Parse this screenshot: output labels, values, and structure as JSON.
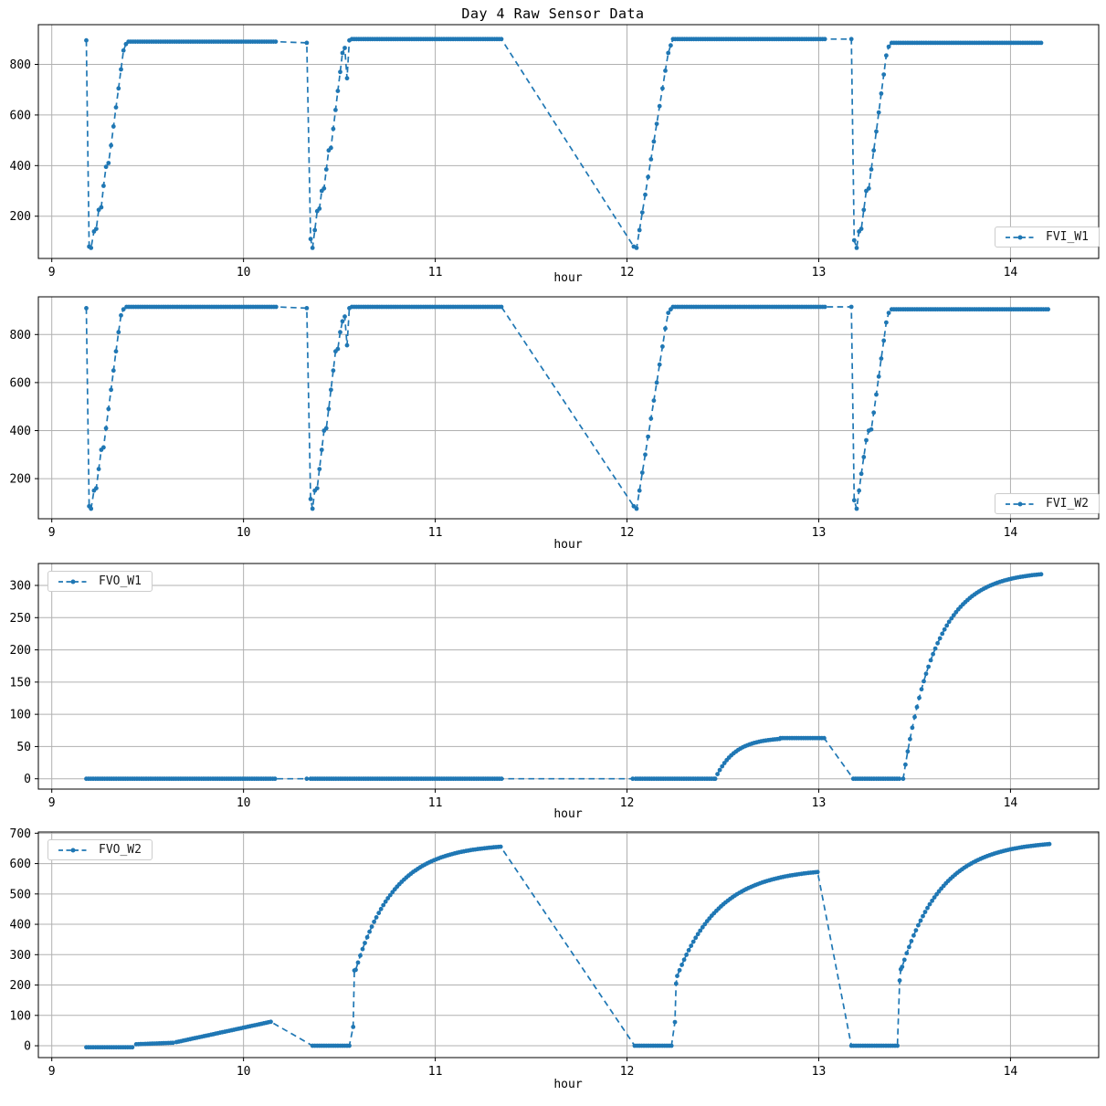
{
  "figure": {
    "title": "Day 4 Raw Sensor Data"
  },
  "colors": {
    "series": "#1f77b4",
    "grid": "#b0b0b0",
    "spine": "#000000",
    "legend_border": "#cccccc",
    "background": "#ffffff"
  },
  "chart_data": [
    {
      "type": "line",
      "xlabel": "hour",
      "legend_loc": "lower right",
      "xlim": [
        8.93,
        14.46
      ],
      "ylim": [
        33,
        957
      ],
      "xticks": [
        9,
        10,
        11,
        12,
        13,
        14
      ],
      "yticks": [
        200,
        400,
        600,
        800
      ],
      "grid": true,
      "series": [
        {
          "name": "FVI_W1",
          "color": "#1f77b4",
          "linestyle": "dashed",
          "marker": "o",
          "segments": [
            {
              "pts": [
                [
                  9.18,
                  895
                ]
              ]
            },
            {
              "pts": [
                [
                  9.195,
                  80
                ],
                [
                  9.205,
                  75
                ]
              ]
            },
            {
              "pts": [
                [
                  9.22,
                  140
                ],
                [
                  9.232,
                  150
                ],
                [
                  9.245,
                  225
                ],
                [
                  9.258,
                  235
                ],
                [
                  9.27,
                  320
                ],
                [
                  9.283,
                  395
                ],
                [
                  9.296,
                  410
                ],
                [
                  9.309,
                  480
                ],
                [
                  9.322,
                  555
                ],
                [
                  9.335,
                  630
                ],
                [
                  9.348,
                  705
                ],
                [
                  9.361,
                  780
                ],
                [
                  9.374,
                  855
                ],
                [
                  9.387,
                  880
                ]
              ]
            },
            {
              "flat": [
                9.4,
                10.17,
                890
              ]
            },
            {
              "pts": [
                [
                  10.33,
                  885
                ]
              ]
            },
            {
              "pts": [
                [
                  10.35,
                  110
                ],
                [
                  10.36,
                  75
                ]
              ]
            },
            {
              "pts": [
                [
                  10.372,
                  145
                ],
                [
                  10.384,
                  220
                ],
                [
                  10.396,
                  230
                ],
                [
                  10.408,
                  300
                ],
                [
                  10.42,
                  310
                ],
                [
                  10.432,
                  385
                ],
                [
                  10.444,
                  460
                ],
                [
                  10.456,
                  470
                ],
                [
                  10.468,
                  545
                ],
                [
                  10.48,
                  620
                ],
                [
                  10.492,
                  695
                ],
                [
                  10.504,
                  770
                ],
                [
                  10.516,
                  845
                ],
                [
                  10.528,
                  865
                ],
                [
                  10.54,
                  745
                ],
                [
                  10.552,
                  895
                ]
              ]
            },
            {
              "flat": [
                10.565,
                11.35,
                900
              ]
            },
            {
              "pts": [
                [
                  12.035,
                  80
                ],
                [
                  12.05,
                  75
                ]
              ]
            },
            {
              "pts": [
                [
                  12.065,
                  145
                ],
                [
                  12.08,
                  215
                ],
                [
                  12.095,
                  285
                ],
                [
                  12.11,
                  355
                ],
                [
                  12.125,
                  425
                ],
                [
                  12.14,
                  495
                ],
                [
                  12.155,
                  565
                ],
                [
                  12.17,
                  635
                ],
                [
                  12.185,
                  705
                ],
                [
                  12.2,
                  775
                ],
                [
                  12.215,
                  845
                ],
                [
                  12.228,
                  875
                ]
              ]
            },
            {
              "flat": [
                12.24,
                13.04,
                900
              ]
            },
            {
              "pts": [
                [
                  13.17,
                  900
                ]
              ]
            },
            {
              "pts": [
                [
                  13.185,
                  105
                ],
                [
                  13.198,
                  75
                ]
              ]
            },
            {
              "pts": [
                [
                  13.21,
                  140
                ],
                [
                  13.222,
                  150
                ],
                [
                  13.235,
                  225
                ],
                [
                  13.248,
                  300
                ],
                [
                  13.261,
                  310
                ],
                [
                  13.274,
                  385
                ],
                [
                  13.287,
                  460
                ],
                [
                  13.3,
                  535
                ],
                [
                  13.313,
                  610
                ],
                [
                  13.326,
                  685
                ],
                [
                  13.339,
                  760
                ],
                [
                  13.352,
                  835
                ],
                [
                  13.365,
                  870
                ]
              ]
            },
            {
              "flat": [
                13.38,
                14.17,
                885
              ]
            }
          ]
        }
      ]
    },
    {
      "type": "line",
      "xlabel": "hour",
      "legend_loc": "lower right",
      "xlim": [
        8.93,
        14.46
      ],
      "ylim": [
        33,
        957
      ],
      "xticks": [
        9,
        10,
        11,
        12,
        13,
        14
      ],
      "yticks": [
        200,
        400,
        600,
        800
      ],
      "grid": true,
      "series": [
        {
          "name": "FVI_W2",
          "color": "#1f77b4",
          "linestyle": "dashed",
          "marker": "o",
          "segments": [
            {
              "pts": [
                [
                  9.18,
                  910
                ]
              ]
            },
            {
              "pts": [
                [
                  9.195,
                  85
                ],
                [
                  9.205,
                  75
                ]
              ]
            },
            {
              "pts": [
                [
                  9.22,
                  150
                ],
                [
                  9.232,
                  160
                ],
                [
                  9.245,
                  240
                ],
                [
                  9.258,
                  320
                ],
                [
                  9.27,
                  330
                ],
                [
                  9.283,
                  410
                ],
                [
                  9.296,
                  490
                ],
                [
                  9.309,
                  570
                ],
                [
                  9.322,
                  650
                ],
                [
                  9.335,
                  730
                ],
                [
                  9.348,
                  810
                ],
                [
                  9.361,
                  880
                ],
                [
                  9.374,
                  905
                ]
              ]
            },
            {
              "flat": [
                9.39,
                10.17,
                915
              ]
            },
            {
              "pts": [
                [
                  10.33,
                  910
                ]
              ]
            },
            {
              "pts": [
                [
                  10.35,
                  115
                ],
                [
                  10.36,
                  75
                ]
              ]
            },
            {
              "pts": [
                [
                  10.372,
                  150
                ],
                [
                  10.384,
                  160
                ],
                [
                  10.396,
                  240
                ],
                [
                  10.408,
                  320
                ],
                [
                  10.42,
                  400
                ],
                [
                  10.432,
                  410
                ],
                [
                  10.444,
                  490
                ],
                [
                  10.456,
                  570
                ],
                [
                  10.468,
                  650
                ],
                [
                  10.48,
                  730
                ],
                [
                  10.492,
                  740
                ],
                [
                  10.504,
                  810
                ],
                [
                  10.516,
                  855
                ],
                [
                  10.528,
                  875
                ],
                [
                  10.54,
                  755
                ],
                [
                  10.552,
                  910
                ]
              ]
            },
            {
              "flat": [
                10.565,
                11.35,
                915
              ]
            },
            {
              "pts": [
                [
                  12.035,
                  85
                ],
                [
                  12.05,
                  75
                ]
              ]
            },
            {
              "pts": [
                [
                  12.065,
                  150
                ],
                [
                  12.08,
                  225
                ],
                [
                  12.095,
                  300
                ],
                [
                  12.11,
                  375
                ],
                [
                  12.125,
                  450
                ],
                [
                  12.14,
                  525
                ],
                [
                  12.155,
                  600
                ],
                [
                  12.17,
                  675
                ],
                [
                  12.185,
                  750
                ],
                [
                  12.2,
                  825
                ],
                [
                  12.215,
                  890
                ],
                [
                  12.228,
                  905
                ]
              ]
            },
            {
              "flat": [
                12.24,
                13.04,
                915
              ]
            },
            {
              "pts": [
                [
                  13.17,
                  915
                ]
              ]
            },
            {
              "pts": [
                [
                  13.185,
                  110
                ],
                [
                  13.198,
                  75
                ]
              ]
            },
            {
              "pts": [
                [
                  13.21,
                  150
                ],
                [
                  13.222,
                  220
                ],
                [
                  13.235,
                  290
                ],
                [
                  13.248,
                  360
                ],
                [
                  13.261,
                  400
                ],
                [
                  13.274,
                  405
                ],
                [
                  13.287,
                  475
                ],
                [
                  13.3,
                  550
                ],
                [
                  13.313,
                  625
                ],
                [
                  13.326,
                  700
                ],
                [
                  13.339,
                  775
                ],
                [
                  13.352,
                  850
                ],
                [
                  13.365,
                  890
                ]
              ]
            },
            {
              "flat": [
                13.38,
                14.2,
                905
              ]
            }
          ]
        }
      ]
    },
    {
      "type": "line",
      "xlabel": "hour",
      "legend_loc": "upper left",
      "xlim": [
        8.93,
        14.46
      ],
      "ylim": [
        -16,
        334
      ],
      "xticks": [
        9,
        10,
        11,
        12,
        13,
        14
      ],
      "yticks": [
        0,
        50,
        100,
        150,
        200,
        250,
        300
      ],
      "grid": true,
      "series": [
        {
          "name": "FVO_W1",
          "color": "#1f77b4",
          "linestyle": "dashed",
          "marker": "o",
          "segments": [
            {
              "flat": [
                9.18,
                10.17,
                0
              ]
            },
            {
              "pts": [
                [
                  10.33,
                  0
                ]
              ]
            },
            {
              "flat": [
                10.35,
                11.35,
                0
              ]
            },
            {
              "pts": [
                [
                  12.03,
                  0
                ]
              ]
            },
            {
              "flat": [
                12.045,
                12.46,
                0
              ]
            },
            {
              "sat": [
                12.46,
                12.8,
                0,
                64,
                0.1
              ]
            },
            {
              "flat": [
                12.8,
                13.03,
                63
              ]
            },
            {
              "flat": [
                13.18,
                13.43,
                0
              ]
            },
            {
              "sat": [
                13.44,
                14.17,
                0,
                322,
                0.17
              ]
            }
          ]
        }
      ]
    },
    {
      "type": "line",
      "xlabel": "hour",
      "legend_loc": "upper left",
      "xlim": [
        8.93,
        14.46
      ],
      "ylim": [
        -39,
        704
      ],
      "xticks": [
        9,
        10,
        11,
        12,
        13,
        14
      ],
      "yticks": [
        0,
        100,
        200,
        300,
        400,
        500,
        600,
        700
      ],
      "grid": true,
      "series": [
        {
          "name": "FVO_W2",
          "color": "#1f77b4",
          "linestyle": "dashed",
          "marker": "o",
          "segments": [
            {
              "flat": [
                9.18,
                9.42,
                -5
              ]
            },
            {
              "ramp": [
                9.44,
                9.64,
                5,
                10
              ]
            },
            {
              "ramp": [
                9.65,
                10.15,
                12,
                80
              ]
            },
            {
              "flat": [
                10.36,
                10.56,
                0
              ]
            },
            {
              "pts": [
                [
                  10.572,
                  62
                ],
                [
                  10.578,
                  248
                ]
              ]
            },
            {
              "sat": [
                10.585,
                11.35,
                250,
                665,
                0.2
              ]
            },
            {
              "flat": [
                12.04,
                12.24,
                0
              ]
            },
            {
              "pts": [
                [
                  12.25,
                  78
                ],
                [
                  12.256,
                  205
                ]
              ]
            },
            {
              "sat": [
                12.262,
                13.005,
                230,
                585,
                0.22
              ]
            },
            {
              "flat": [
                13.17,
                13.41,
                0
              ]
            },
            {
              "pts": [
                [
                  13.422,
                  215
                ],
                [
                  13.428,
                  252
                ]
              ]
            },
            {
              "sat": [
                13.435,
                14.21,
                260,
                675,
                0.21
              ]
            }
          ]
        }
      ]
    }
  ]
}
